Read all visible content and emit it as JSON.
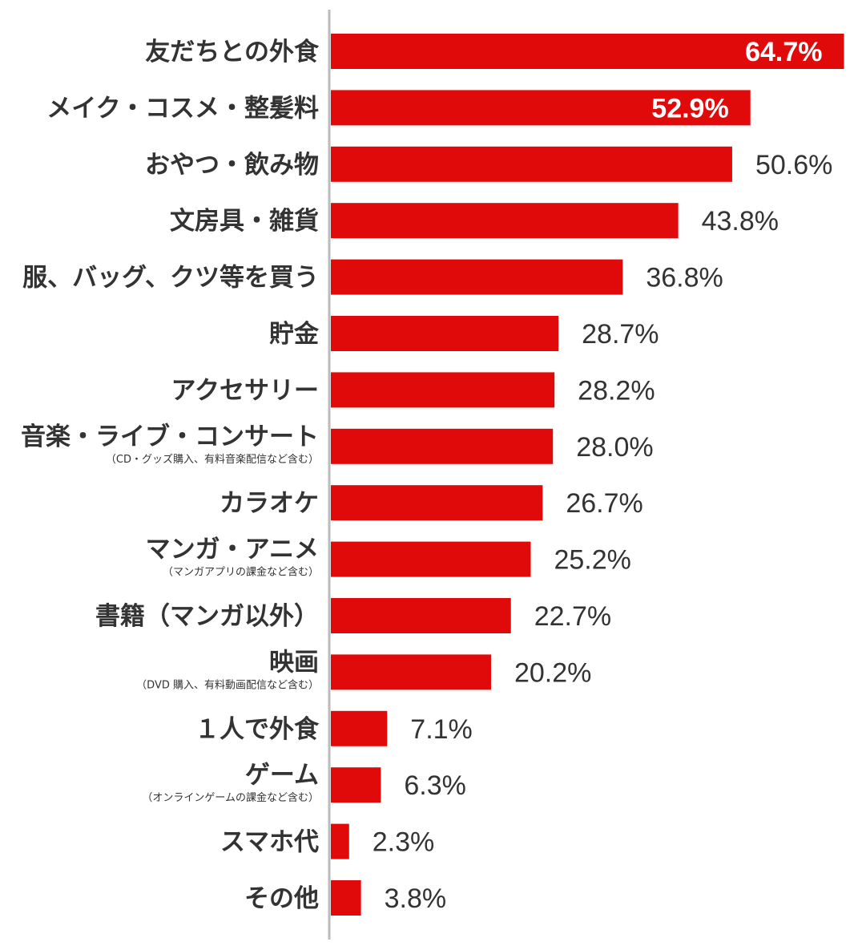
{
  "chart_data": {
    "type": "bar",
    "orientation": "horizontal",
    "title": "",
    "xlabel": "",
    "ylabel": "",
    "xlim": [
      0,
      65
    ],
    "grid": false,
    "legend": "none",
    "colors": {
      "bar": "#e10a0a",
      "axis": "#bbbbbb",
      "text": "#333333",
      "inside_label": "#ffffff"
    },
    "categories": [
      {
        "label": "友だちとの外食",
        "sublabel": ""
      },
      {
        "label": "メイク・コスメ・整髪料",
        "sublabel": ""
      },
      {
        "label": "おやつ・飲み物",
        "sublabel": ""
      },
      {
        "label": "文房具・雑貨",
        "sublabel": ""
      },
      {
        "label": "服、バッグ、クツ等を買う",
        "sublabel": ""
      },
      {
        "label": "貯金",
        "sublabel": ""
      },
      {
        "label": "アクセサリー",
        "sublabel": ""
      },
      {
        "label": "音楽・ライブ・コンサート",
        "sublabel": "（CD・グッズ購入、有料音楽配信など含む）"
      },
      {
        "label": "カラオケ",
        "sublabel": ""
      },
      {
        "label": "マンガ・アニメ",
        "sublabel": "（マンガアプリの課金など含む）"
      },
      {
        "label": "書籍（マンガ以外）",
        "sublabel": ""
      },
      {
        "label": "映画",
        "sublabel": "（DVD 購入、有料動画配信など含む）"
      },
      {
        "label": "１人で外食",
        "sublabel": ""
      },
      {
        "label": "ゲーム",
        "sublabel": "（オンラインゲームの課金など含む）"
      },
      {
        "label": "スマホ代",
        "sublabel": ""
      },
      {
        "label": "その他",
        "sublabel": ""
      }
    ],
    "values": [
      64.7,
      52.9,
      50.6,
      43.8,
      36.8,
      28.7,
      28.2,
      28.0,
      26.7,
      25.2,
      22.7,
      20.2,
      7.1,
      6.3,
      2.3,
      3.8
    ],
    "value_labels": [
      "64.7%",
      "52.9%",
      "50.6%",
      "43.8%",
      "36.8%",
      "28.7%",
      "28.2%",
      "28.0%",
      "26.7%",
      "25.2%",
      "22.7%",
      "20.2%",
      "7.1%",
      "6.3%",
      "2.3%",
      "3.8%"
    ],
    "labels_inside": [
      true,
      true,
      false,
      false,
      false,
      false,
      false,
      false,
      false,
      false,
      false,
      false,
      false,
      false,
      false,
      false
    ]
  }
}
